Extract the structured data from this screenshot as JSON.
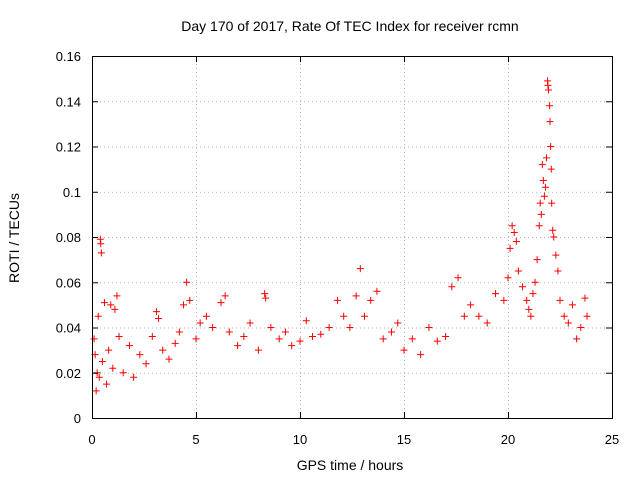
{
  "chart_data": {
    "type": "scatter",
    "title": "Day 170 of 2017, Rate Of TEC Index for receiver rcmn",
    "xlabel": "GPS time / hours",
    "ylabel": "ROTI / TECUs",
    "xlim": [
      0,
      25
    ],
    "ylim": [
      0,
      0.16
    ],
    "xticks": [
      0,
      5,
      10,
      15,
      20,
      25
    ],
    "xtick_labels": [
      "0",
      "5",
      "10",
      "15",
      "20",
      "25"
    ],
    "yticks": [
      0,
      0.02,
      0.04,
      0.06,
      0.08,
      0.1,
      0.12,
      0.14,
      0.16
    ],
    "ytick_labels": [
      "0",
      "0.02",
      "0.04",
      "0.06",
      "0.08",
      "0.1",
      "0.12",
      "0.14",
      "0.16"
    ],
    "grid": true,
    "marker": "+",
    "series": [
      {
        "name": "ROTI",
        "color": "#ff0000",
        "points": [
          [
            0.1,
            0.035
          ],
          [
            0.15,
            0.028
          ],
          [
            0.2,
            0.012
          ],
          [
            0.25,
            0.02
          ],
          [
            0.3,
            0.045
          ],
          [
            0.35,
            0.018
          ],
          [
            0.4,
            0.079
          ],
          [
            0.42,
            0.077
          ],
          [
            0.45,
            0.073
          ],
          [
            0.5,
            0.025
          ],
          [
            0.6,
            0.051
          ],
          [
            0.7,
            0.015
          ],
          [
            0.8,
            0.03
          ],
          [
            0.9,
            0.05
          ],
          [
            1.0,
            0.022
          ],
          [
            1.1,
            0.048
          ],
          [
            1.2,
            0.054
          ],
          [
            1.3,
            0.036
          ],
          [
            1.5,
            0.02
          ],
          [
            1.8,
            0.032
          ],
          [
            2.0,
            0.018
          ],
          [
            2.3,
            0.028
          ],
          [
            2.6,
            0.024
          ],
          [
            2.9,
            0.036
          ],
          [
            3.1,
            0.047
          ],
          [
            3.2,
            0.044
          ],
          [
            3.4,
            0.03
          ],
          [
            3.7,
            0.026
          ],
          [
            4.0,
            0.033
          ],
          [
            4.2,
            0.038
          ],
          [
            4.4,
            0.05
          ],
          [
            4.55,
            0.06
          ],
          [
            4.7,
            0.052
          ],
          [
            5.0,
            0.035
          ],
          [
            5.2,
            0.042
          ],
          [
            5.5,
            0.045
          ],
          [
            5.8,
            0.04
          ],
          [
            6.2,
            0.051
          ],
          [
            6.4,
            0.054
          ],
          [
            6.6,
            0.038
          ],
          [
            7.0,
            0.032
          ],
          [
            7.3,
            0.036
          ],
          [
            7.6,
            0.042
          ],
          [
            8.0,
            0.03
          ],
          [
            8.3,
            0.055
          ],
          [
            8.35,
            0.053
          ],
          [
            8.6,
            0.04
          ],
          [
            9.0,
            0.035
          ],
          [
            9.3,
            0.038
          ],
          [
            9.6,
            0.032
          ],
          [
            10.0,
            0.034
          ],
          [
            10.3,
            0.043
          ],
          [
            10.6,
            0.036
          ],
          [
            11.0,
            0.037
          ],
          [
            11.4,
            0.04
          ],
          [
            11.8,
            0.052
          ],
          [
            12.1,
            0.045
          ],
          [
            12.4,
            0.04
          ],
          [
            12.7,
            0.054
          ],
          [
            12.9,
            0.066
          ],
          [
            13.1,
            0.045
          ],
          [
            13.4,
            0.052
          ],
          [
            13.7,
            0.056
          ],
          [
            14.0,
            0.035
          ],
          [
            14.4,
            0.038
          ],
          [
            14.7,
            0.042
          ],
          [
            15.0,
            0.03
          ],
          [
            15.4,
            0.035
          ],
          [
            15.8,
            0.028
          ],
          [
            16.2,
            0.04
          ],
          [
            16.6,
            0.034
          ],
          [
            17.0,
            0.036
          ],
          [
            17.3,
            0.058
          ],
          [
            17.6,
            0.062
          ],
          [
            17.9,
            0.045
          ],
          [
            18.2,
            0.05
          ],
          [
            18.6,
            0.045
          ],
          [
            19.0,
            0.042
          ],
          [
            19.4,
            0.055
          ],
          [
            19.8,
            0.052
          ],
          [
            20.0,
            0.062
          ],
          [
            20.1,
            0.075
          ],
          [
            20.2,
            0.085
          ],
          [
            20.3,
            0.082
          ],
          [
            20.4,
            0.078
          ],
          [
            20.5,
            0.065
          ],
          [
            20.7,
            0.058
          ],
          [
            20.9,
            0.052
          ],
          [
            21.0,
            0.048
          ],
          [
            21.1,
            0.045
          ],
          [
            21.2,
            0.055
          ],
          [
            21.3,
            0.06
          ],
          [
            21.4,
            0.07
          ],
          [
            21.5,
            0.085
          ],
          [
            21.55,
            0.095
          ],
          [
            21.6,
            0.09
          ],
          [
            21.65,
            0.112
          ],
          [
            21.7,
            0.105
          ],
          [
            21.75,
            0.098
          ],
          [
            21.8,
            0.102
          ],
          [
            21.85,
            0.115
          ],
          [
            21.9,
            0.149
          ],
          [
            21.92,
            0.147
          ],
          [
            21.95,
            0.145
          ],
          [
            22.0,
            0.138
          ],
          [
            22.02,
            0.131
          ],
          [
            22.05,
            0.12
          ],
          [
            22.08,
            0.11
          ],
          [
            22.1,
            0.095
          ],
          [
            22.15,
            0.083
          ],
          [
            22.2,
            0.08
          ],
          [
            22.3,
            0.072
          ],
          [
            22.4,
            0.065
          ],
          [
            22.5,
            0.052
          ],
          [
            22.7,
            0.045
          ],
          [
            22.9,
            0.042
          ],
          [
            23.1,
            0.05
          ],
          [
            23.3,
            0.035
          ],
          [
            23.5,
            0.04
          ],
          [
            23.7,
            0.053
          ],
          [
            23.8,
            0.045
          ]
        ]
      }
    ]
  }
}
